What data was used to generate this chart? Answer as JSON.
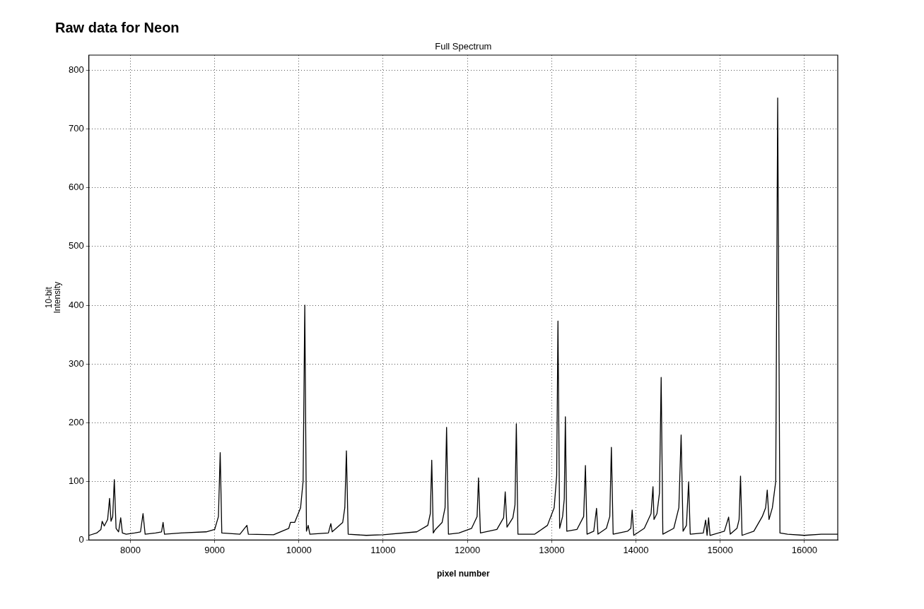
{
  "chart_data": {
    "type": "line",
    "title": "Raw data for Neon",
    "subtitle": "Full Spectrum",
    "xlabel": "pixel number",
    "ylabel": "10-bit\nIntensity",
    "xlim": [
      7507,
      16396
    ],
    "ylim": [
      0,
      826
    ],
    "xticks": [
      8000,
      9000,
      10000,
      11000,
      12000,
      13000,
      14000,
      15000,
      16000
    ],
    "yticks": [
      0,
      100,
      200,
      300,
      400,
      500,
      600,
      700,
      800
    ],
    "grid": true,
    "legend": false,
    "marker": "none",
    "line_style": "solid",
    "series": [
      {
        "color": "#000000",
        "x": [
          7510,
          7600,
          7650,
          7665,
          7690,
          7730,
          7753,
          7770,
          7790,
          7809,
          7830,
          7860,
          7885,
          7905,
          7950,
          8050,
          8120,
          8150,
          8175,
          8300,
          8370,
          8388,
          8405,
          8600,
          8900,
          9000,
          9045,
          9066,
          9085,
          9300,
          9383,
          9400,
          9700,
          9880,
          9900,
          9950,
          10020,
          10050,
          10070,
          10090,
          10110,
          10130,
          10350,
          10379,
          10395,
          10520,
          10545,
          10564,
          10585,
          10800,
          11000,
          11400,
          11530,
          11560,
          11577,
          11595,
          11620,
          11700,
          11735,
          11753,
          11775,
          11900,
          12050,
          12115,
          12132,
          12155,
          12350,
          12430,
          12449,
          12470,
          12540,
          12565,
          12581,
          12600,
          12800,
          12950,
          13030,
          13060,
          13075,
          13095,
          13130,
          13150,
          13163,
          13180,
          13300,
          13380,
          13401,
          13420,
          13500,
          13533,
          13550,
          13650,
          13690,
          13709,
          13730,
          13900,
          13940,
          13956,
          13975,
          14100,
          14180,
          14203,
          14215,
          14250,
          14280,
          14300,
          14320,
          14450,
          14510,
          14537,
          14560,
          14600,
          14626,
          14645,
          14800,
          14828,
          14845,
          14863,
          14880,
          15050,
          15101,
          15120,
          15200,
          15225,
          15242,
          15260,
          15400,
          15500,
          15540,
          15559,
          15580,
          15620,
          15660,
          15683,
          15710,
          15800,
          16000,
          16200,
          16396
        ],
        "values": [
          8,
          12,
          18,
          32,
          24,
          35,
          71,
          32,
          40,
          103,
          20,
          14,
          38,
          12,
          10,
          12,
          14,
          45,
          10,
          12,
          14,
          30,
          10,
          12,
          14,
          18,
          40,
          149,
          12,
          10,
          25,
          10,
          9,
          20,
          30,
          30,
          55,
          100,
          400,
          15,
          25,
          10,
          12,
          28,
          14,
          30,
          55,
          152,
          10,
          8,
          9,
          14,
          25,
          45,
          136,
          12,
          18,
          30,
          55,
          192,
          10,
          12,
          20,
          40,
          106,
          12,
          18,
          38,
          82,
          22,
          38,
          60,
          198,
          10,
          10,
          25,
          55,
          110,
          373,
          20,
          40,
          70,
          210,
          15,
          18,
          40,
          127,
          10,
          15,
          54,
          10,
          20,
          40,
          158,
          10,
          15,
          20,
          51,
          8,
          20,
          45,
          91,
          35,
          45,
          80,
          277,
          10,
          20,
          55,
          179,
          15,
          25,
          99,
          10,
          12,
          34,
          8,
          38,
          8,
          15,
          39,
          10,
          20,
          35,
          109,
          8,
          15,
          40,
          55,
          85,
          35,
          55,
          100,
          753,
          12,
          10,
          8,
          10,
          10
        ]
      }
    ]
  }
}
